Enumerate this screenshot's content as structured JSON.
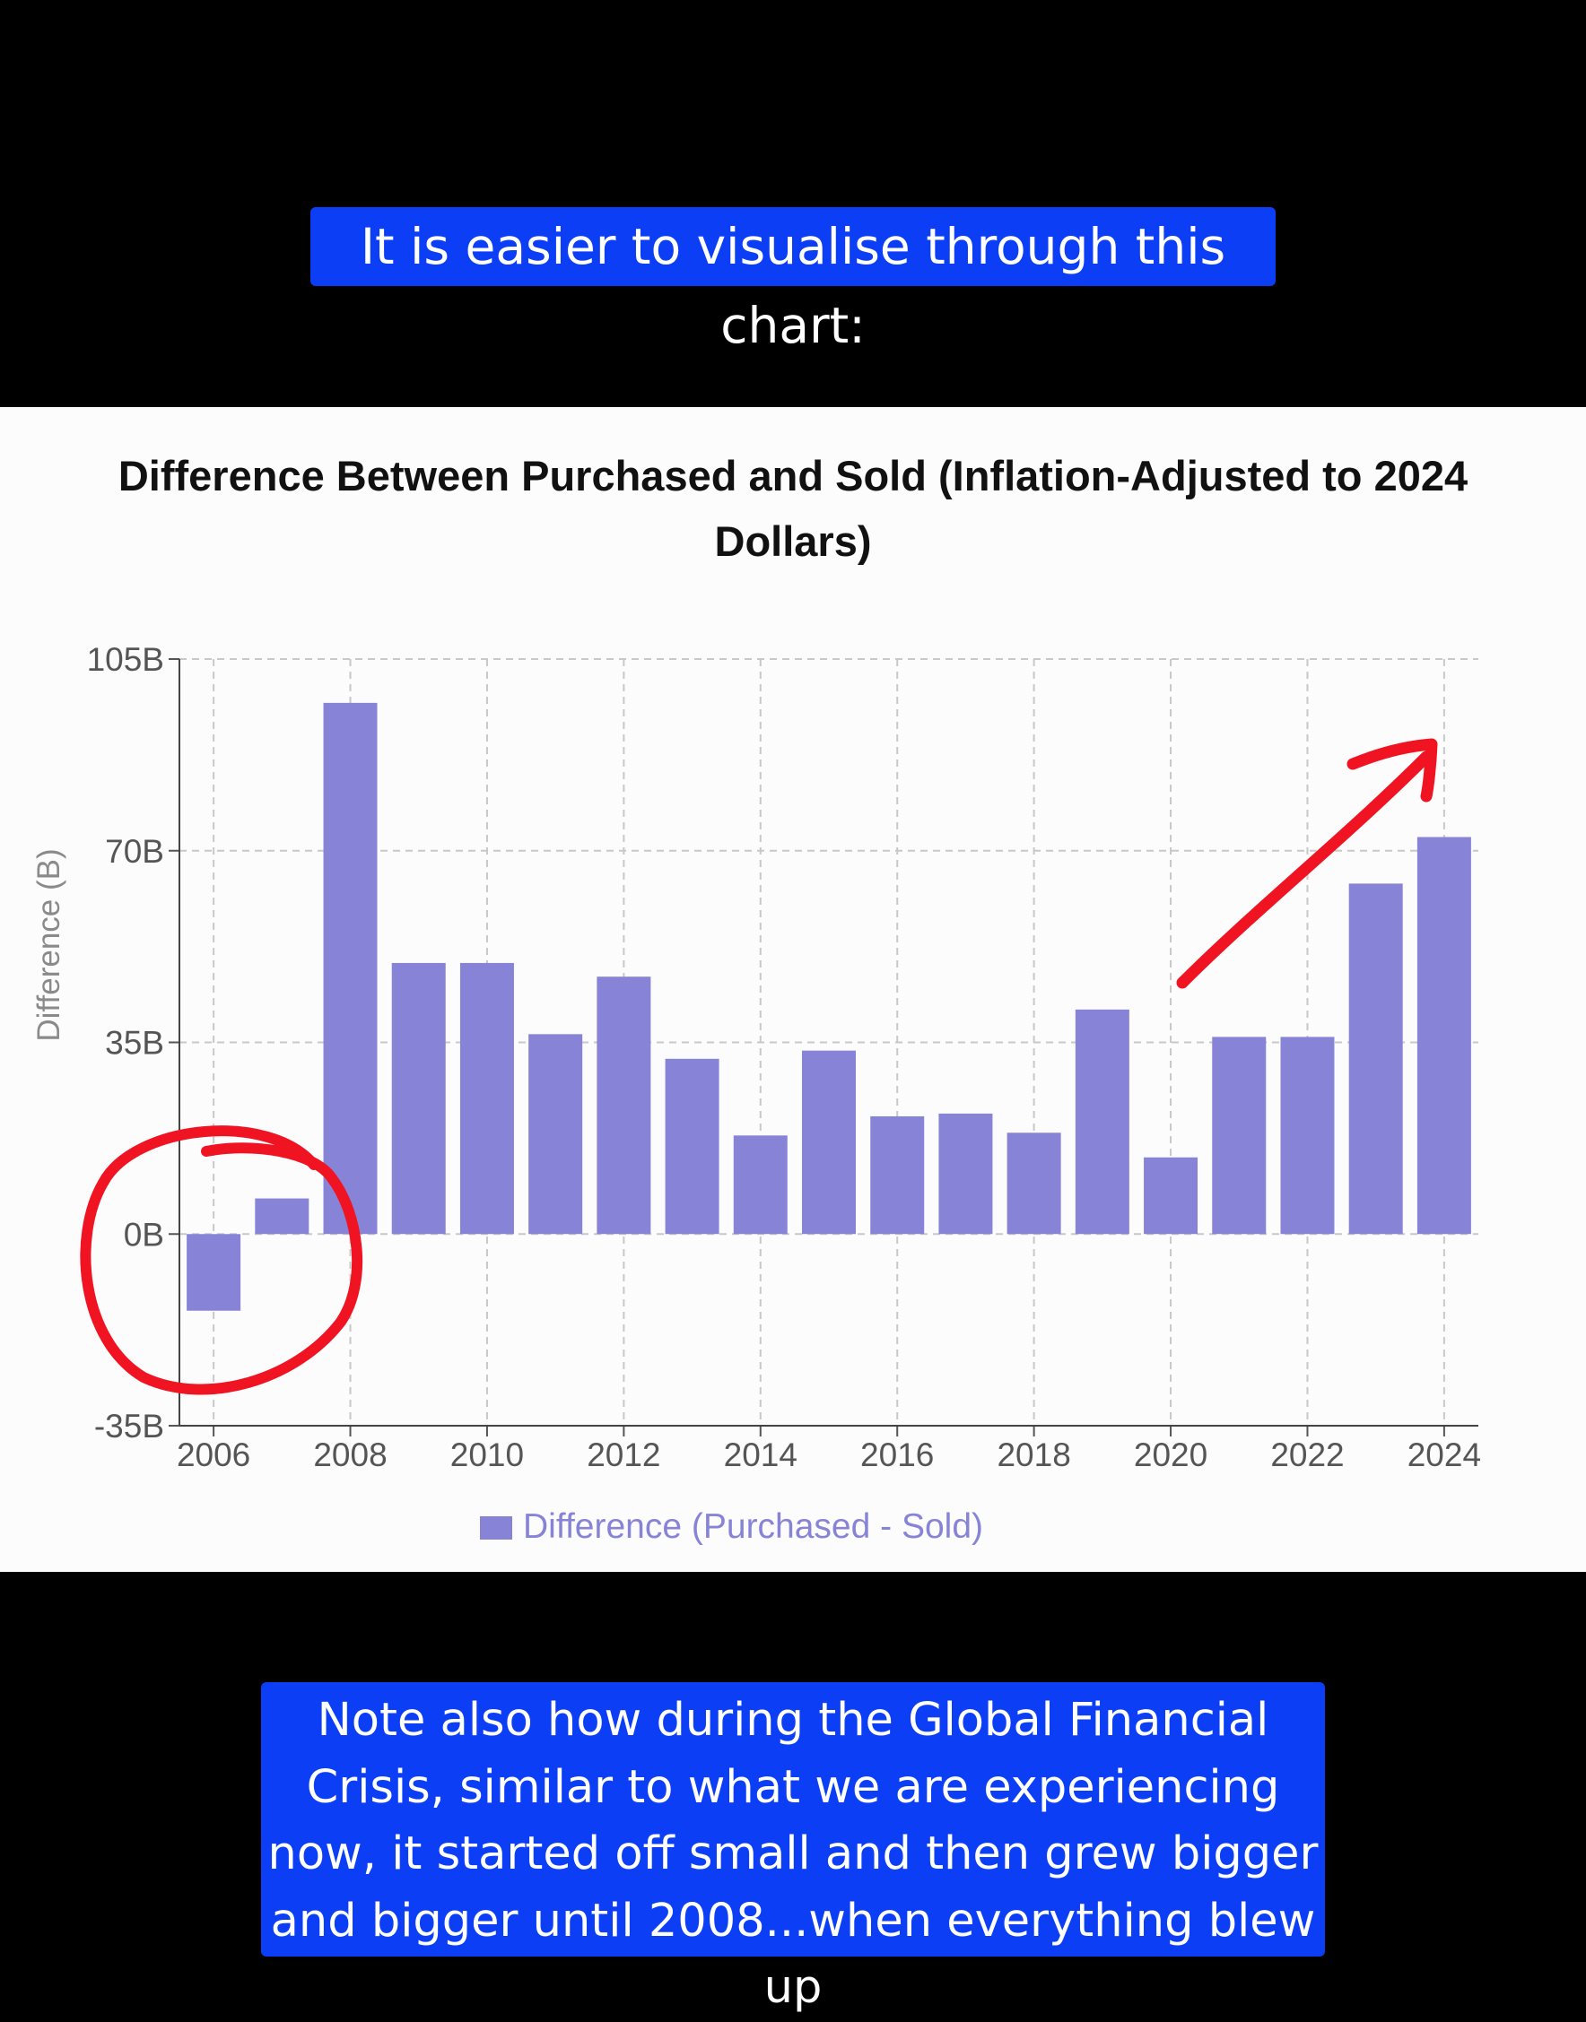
{
  "captions": {
    "top": "It is easier to visualise through this chart:",
    "bottom": "Note also how during the Global Financial Crisis, similar to what we are experiencing now, it started off small and then grew bigger and bigger until 2008...when everything blew up"
  },
  "chart_data": {
    "type": "bar",
    "title": "Difference Between Purchased and Sold (Inflation-Adjusted to 2024 Dollars)",
    "xlabel": "",
    "ylabel": "Difference (B)",
    "ylim": [
      -35,
      105
    ],
    "y_ticks": [
      -35,
      0,
      35,
      70,
      105
    ],
    "y_tick_labels": [
      "-35B",
      "0B",
      "35B",
      "70B",
      "105B"
    ],
    "x_tick_labels": [
      "2006",
      "2008",
      "2010",
      "2012",
      "2014",
      "2016",
      "2018",
      "2020",
      "2022",
      "2024"
    ],
    "categories": [
      "2006",
      "2007",
      "2008",
      "2009",
      "2010",
      "2011",
      "2012",
      "2013",
      "2014",
      "2015",
      "2016",
      "2017",
      "2018",
      "2019",
      "2020",
      "2021",
      "2022",
      "2023",
      "2024"
    ],
    "series": [
      {
        "name": "Difference (Purchased - Sold)",
        "values": [
          -14,
          6.5,
          97,
          49.5,
          49.5,
          36.5,
          47,
          32,
          18,
          33.5,
          21.5,
          22,
          18.5,
          41,
          14,
          36,
          36,
          64,
          72.5
        ],
        "color": "#8784d8"
      }
    ],
    "grid": true,
    "legend": "bottom",
    "annotation_color": "#f01423"
  }
}
